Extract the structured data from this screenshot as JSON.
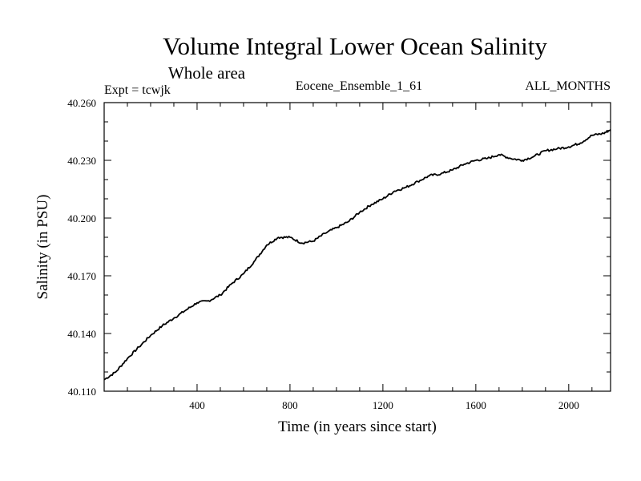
{
  "chart_data": {
    "type": "line",
    "title": "Volume Integral Lower Ocean Salinity",
    "subtitle": "Whole area",
    "expt_label": "Expt = tcwjk",
    "ensemble_label": "Eocene_Ensemble_1_61",
    "months_label": "ALL_MONTHS",
    "xlabel": "Time (in years since start)",
    "ylabel": "Salinity (in PSU)",
    "xlim": [
      0,
      2180
    ],
    "ylim": [
      40.11,
      40.26
    ],
    "x_ticks": [
      400,
      800,
      1200,
      1600,
      2000
    ],
    "x_tick_labels": [
      "400",
      "800",
      "1200",
      "1600",
      "2000"
    ],
    "y_ticks": [
      40.11,
      40.14,
      40.17,
      40.2,
      40.23,
      40.26
    ],
    "y_tick_labels": [
      "40.110",
      "40.140",
      "40.170",
      "40.200",
      "40.230",
      "40.260"
    ],
    "grid": false,
    "legend": "none",
    "line_color": "#000000",
    "series": [
      {
        "x": [
          0,
          50,
          100,
          150,
          200,
          250,
          300,
          350,
          400,
          450,
          500,
          550,
          600,
          650,
          700,
          750,
          800,
          850,
          900,
          950,
          1000,
          1050,
          1100,
          1150,
          1200,
          1250,
          1300,
          1350,
          1400,
          1450,
          1500,
          1550,
          1600,
          1650,
          1700,
          1750,
          1800,
          1850,
          1900,
          1950,
          2000,
          2050,
          2100,
          2150,
          2180
        ],
        "y": [
          40.116,
          40.12,
          40.127,
          40.133,
          40.139,
          40.144,
          40.148,
          40.152,
          40.156,
          40.157,
          40.16,
          40.166,
          40.171,
          40.178,
          40.186,
          40.19,
          40.19,
          40.187,
          40.188,
          40.192,
          40.195,
          40.198,
          40.203,
          40.207,
          40.21,
          40.214,
          40.216,
          40.219,
          40.222,
          40.223,
          40.225,
          40.228,
          40.23,
          40.231,
          40.233,
          40.231,
          40.23,
          40.232,
          40.235,
          40.236,
          40.237,
          40.239,
          40.243,
          40.244,
          40.246
        ]
      }
    ]
  }
}
